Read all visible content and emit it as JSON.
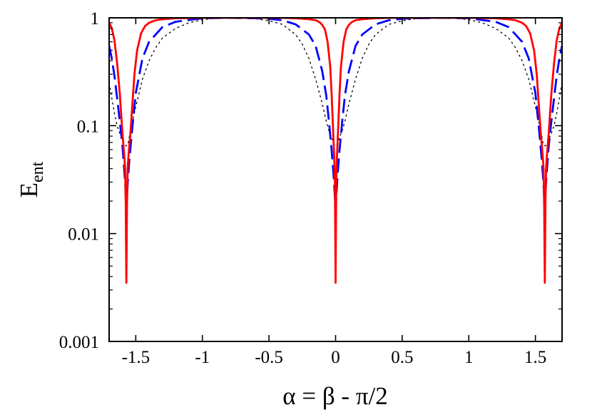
{
  "chart_data": {
    "type": "line",
    "title": "",
    "xlabel": "α = β - π/2",
    "ylabel": {
      "main": "E",
      "subscript": "ent"
    },
    "xscale": "linear",
    "yscale": "log",
    "xlim": [
      -1.7,
      1.7
    ],
    "ylim": [
      0.001,
      1
    ],
    "grid": false,
    "legend": "none",
    "x_ticks": [
      {
        "value": -1.5,
        "label": "-1.5"
      },
      {
        "value": -1,
        "label": "-1"
      },
      {
        "value": -0.5,
        "label": "-0.5"
      },
      {
        "value": 0,
        "label": "0"
      },
      {
        "value": 0.5,
        "label": "0.5"
      },
      {
        "value": 1,
        "label": "1"
      },
      {
        "value": 1.5,
        "label": "1.5"
      }
    ],
    "y_ticks": [
      {
        "value": 0.001,
        "label": "0.001"
      },
      {
        "value": 0.01,
        "label": "0.01"
      },
      {
        "value": 0.1,
        "label": "0.1"
      },
      {
        "value": 1,
        "label": "1"
      }
    ],
    "series": [
      {
        "color": "#ff0000",
        "dash": "solid",
        "x": [
          -1.7,
          -1.68,
          -1.66,
          -1.64,
          -1.62,
          -1.61,
          -1.6,
          -1.59,
          -1.585,
          -1.58,
          -1.575,
          -1.5708,
          -1.566,
          -1.561,
          -1.556,
          -1.551,
          -1.54,
          -1.53,
          -1.51,
          -1.49,
          -1.46,
          -1.43,
          -1.4,
          -1.35,
          -1.3,
          -1.2,
          -1.0,
          -0.785,
          -0.6,
          -0.4,
          -0.3,
          -0.2,
          -0.15,
          -0.12,
          -0.1,
          -0.08,
          -0.06,
          -0.04,
          -0.03,
          -0.02,
          -0.015,
          -0.01,
          -0.005,
          0,
          0.005,
          0.01,
          0.015,
          0.02,
          0.03,
          0.04,
          0.06,
          0.08,
          0.1,
          0.12,
          0.15,
          0.2,
          0.3,
          0.4,
          0.6,
          0.785,
          1.0,
          1.2,
          1.3,
          1.35,
          1.4,
          1.43,
          1.46,
          1.49,
          1.51,
          1.53,
          1.54,
          1.551,
          1.556,
          1.561,
          1.566,
          1.5708,
          1.575,
          1.58,
          1.585,
          1.59,
          1.6,
          1.61,
          1.62,
          1.64,
          1.66,
          1.68,
          1.7
        ],
        "y": [
          0.9,
          0.8,
          0.62,
          0.38,
          0.2,
          0.13,
          0.085,
          0.06,
          0.05,
          0.04,
          0.018,
          0.0035,
          0.018,
          0.04,
          0.05,
          0.06,
          0.085,
          0.13,
          0.3,
          0.5,
          0.72,
          0.84,
          0.9,
          0.95,
          0.97,
          0.99,
          1,
          1,
          1,
          1,
          0.99,
          0.97,
          0.95,
          0.91,
          0.86,
          0.78,
          0.6,
          0.35,
          0.2,
          0.1,
          0.07,
          0.05,
          0.03,
          0.0035,
          0.03,
          0.05,
          0.07,
          0.1,
          0.2,
          0.35,
          0.6,
          0.78,
          0.86,
          0.91,
          0.95,
          0.97,
          0.99,
          1,
          1,
          1,
          1,
          0.99,
          0.97,
          0.95,
          0.9,
          0.84,
          0.72,
          0.5,
          0.3,
          0.13,
          0.085,
          0.06,
          0.05,
          0.04,
          0.018,
          0.0035,
          0.018,
          0.04,
          0.05,
          0.06,
          0.085,
          0.13,
          0.2,
          0.38,
          0.62,
          0.8,
          0.9
        ]
      },
      {
        "color": "#0000ff",
        "dash": "long-dash",
        "x": [
          -1.7,
          -1.68,
          -1.66,
          -1.64,
          -1.62,
          -1.6,
          -1.59,
          -1.58,
          -1.5708,
          -1.56,
          -1.55,
          -1.53,
          -1.5,
          -1.45,
          -1.4,
          -1.3,
          -1.2,
          -1.0,
          -0.8,
          -0.6,
          -0.5,
          -0.4,
          -0.3,
          -0.2,
          -0.15,
          -0.1,
          -0.07,
          -0.05,
          -0.03,
          -0.015,
          0,
          0.015,
          0.03,
          0.05,
          0.07,
          0.1,
          0.15,
          0.2,
          0.3,
          0.4,
          0.5,
          0.6,
          0.8,
          1.0,
          1.2,
          1.3,
          1.4,
          1.45,
          1.5,
          1.53,
          1.55,
          1.56,
          1.5708,
          1.58,
          1.59,
          1.6,
          1.62,
          1.64,
          1.66,
          1.68,
          1.7
        ],
        "y": [
          0.55,
          0.42,
          0.29,
          0.18,
          0.11,
          0.065,
          0.045,
          0.03,
          0.017,
          0.03,
          0.045,
          0.085,
          0.2,
          0.42,
          0.6,
          0.82,
          0.92,
          0.99,
          1,
          0.99,
          0.98,
          0.95,
          0.87,
          0.7,
          0.55,
          0.32,
          0.19,
          0.11,
          0.06,
          0.035,
          0.017,
          0.035,
          0.06,
          0.11,
          0.19,
          0.32,
          0.55,
          0.7,
          0.87,
          0.95,
          0.98,
          0.99,
          1,
          0.99,
          0.92,
          0.82,
          0.6,
          0.42,
          0.2,
          0.085,
          0.045,
          0.03,
          0.017,
          0.03,
          0.045,
          0.065,
          0.11,
          0.18,
          0.29,
          0.42,
          0.55
        ]
      },
      {
        "color": "#000000",
        "dash": "dotted",
        "x": [
          -1.7,
          -1.68,
          -1.66,
          -1.64,
          -1.62,
          -1.6,
          -1.59,
          -1.58,
          -1.5708,
          -1.56,
          -1.54,
          -1.5,
          -1.45,
          -1.4,
          -1.35,
          -1.3,
          -1.2,
          -1.1,
          -1.0,
          -0.9,
          -0.8,
          -0.7,
          -0.6,
          -0.5,
          -0.4,
          -0.3,
          -0.25,
          -0.2,
          -0.15,
          -0.1,
          -0.07,
          -0.05,
          -0.03,
          -0.015,
          0,
          0.015,
          0.03,
          0.05,
          0.07,
          0.1,
          0.15,
          0.2,
          0.25,
          0.3,
          0.4,
          0.5,
          0.6,
          0.7,
          0.8,
          0.9,
          1.0,
          1.1,
          1.2,
          1.3,
          1.35,
          1.4,
          1.45,
          1.5,
          1.54,
          1.56,
          1.5708,
          1.58,
          1.59,
          1.6,
          1.62,
          1.64,
          1.66,
          1.68,
          1.7
        ],
        "y": [
          0.25,
          0.18,
          0.13,
          0.1,
          0.085,
          0.075,
          0.07,
          0.066,
          0.065,
          0.066,
          0.09,
          0.15,
          0.27,
          0.4,
          0.53,
          0.65,
          0.8,
          0.9,
          0.96,
          0.99,
          1,
          1,
          0.98,
          0.94,
          0.87,
          0.7,
          0.57,
          0.42,
          0.27,
          0.16,
          0.11,
          0.09,
          0.078,
          0.068,
          0.065,
          0.068,
          0.078,
          0.09,
          0.11,
          0.16,
          0.27,
          0.42,
          0.57,
          0.7,
          0.87,
          0.94,
          0.98,
          1,
          1,
          0.99,
          0.96,
          0.9,
          0.8,
          0.65,
          0.53,
          0.4,
          0.27,
          0.15,
          0.09,
          0.066,
          0.065,
          0.066,
          0.07,
          0.075,
          0.085,
          0.1,
          0.13,
          0.18,
          0.25
        ]
      }
    ]
  }
}
